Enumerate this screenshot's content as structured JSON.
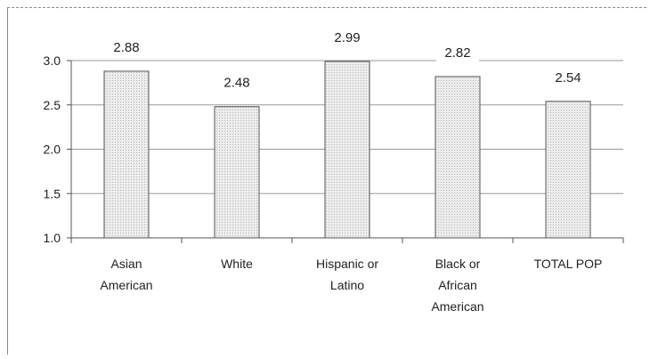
{
  "chart_data": {
    "type": "bar",
    "categories": [
      [
        "Asian",
        "American"
      ],
      [
        "White"
      ],
      [
        "Hispanic or",
        "Latino"
      ],
      [
        "Black or",
        "African",
        "American"
      ],
      [
        "TOTAL POP"
      ]
    ],
    "values": [
      2.88,
      2.48,
      2.99,
      2.82,
      2.54
    ],
    "value_labels": [
      "2.88",
      "2.48",
      "2.99",
      "2.82",
      "2.54"
    ],
    "yticks": [
      "1.0",
      "1.5",
      "2.0",
      "2.5",
      "3.0"
    ],
    "ylim": [
      1.0,
      3.0
    ],
    "title": "",
    "xlabel": "",
    "ylabel": "",
    "grid": true,
    "legend": "none",
    "bar_color": "#e4e4e4",
    "bar_stroke": "#555555",
    "gridline_color": "#999999"
  }
}
